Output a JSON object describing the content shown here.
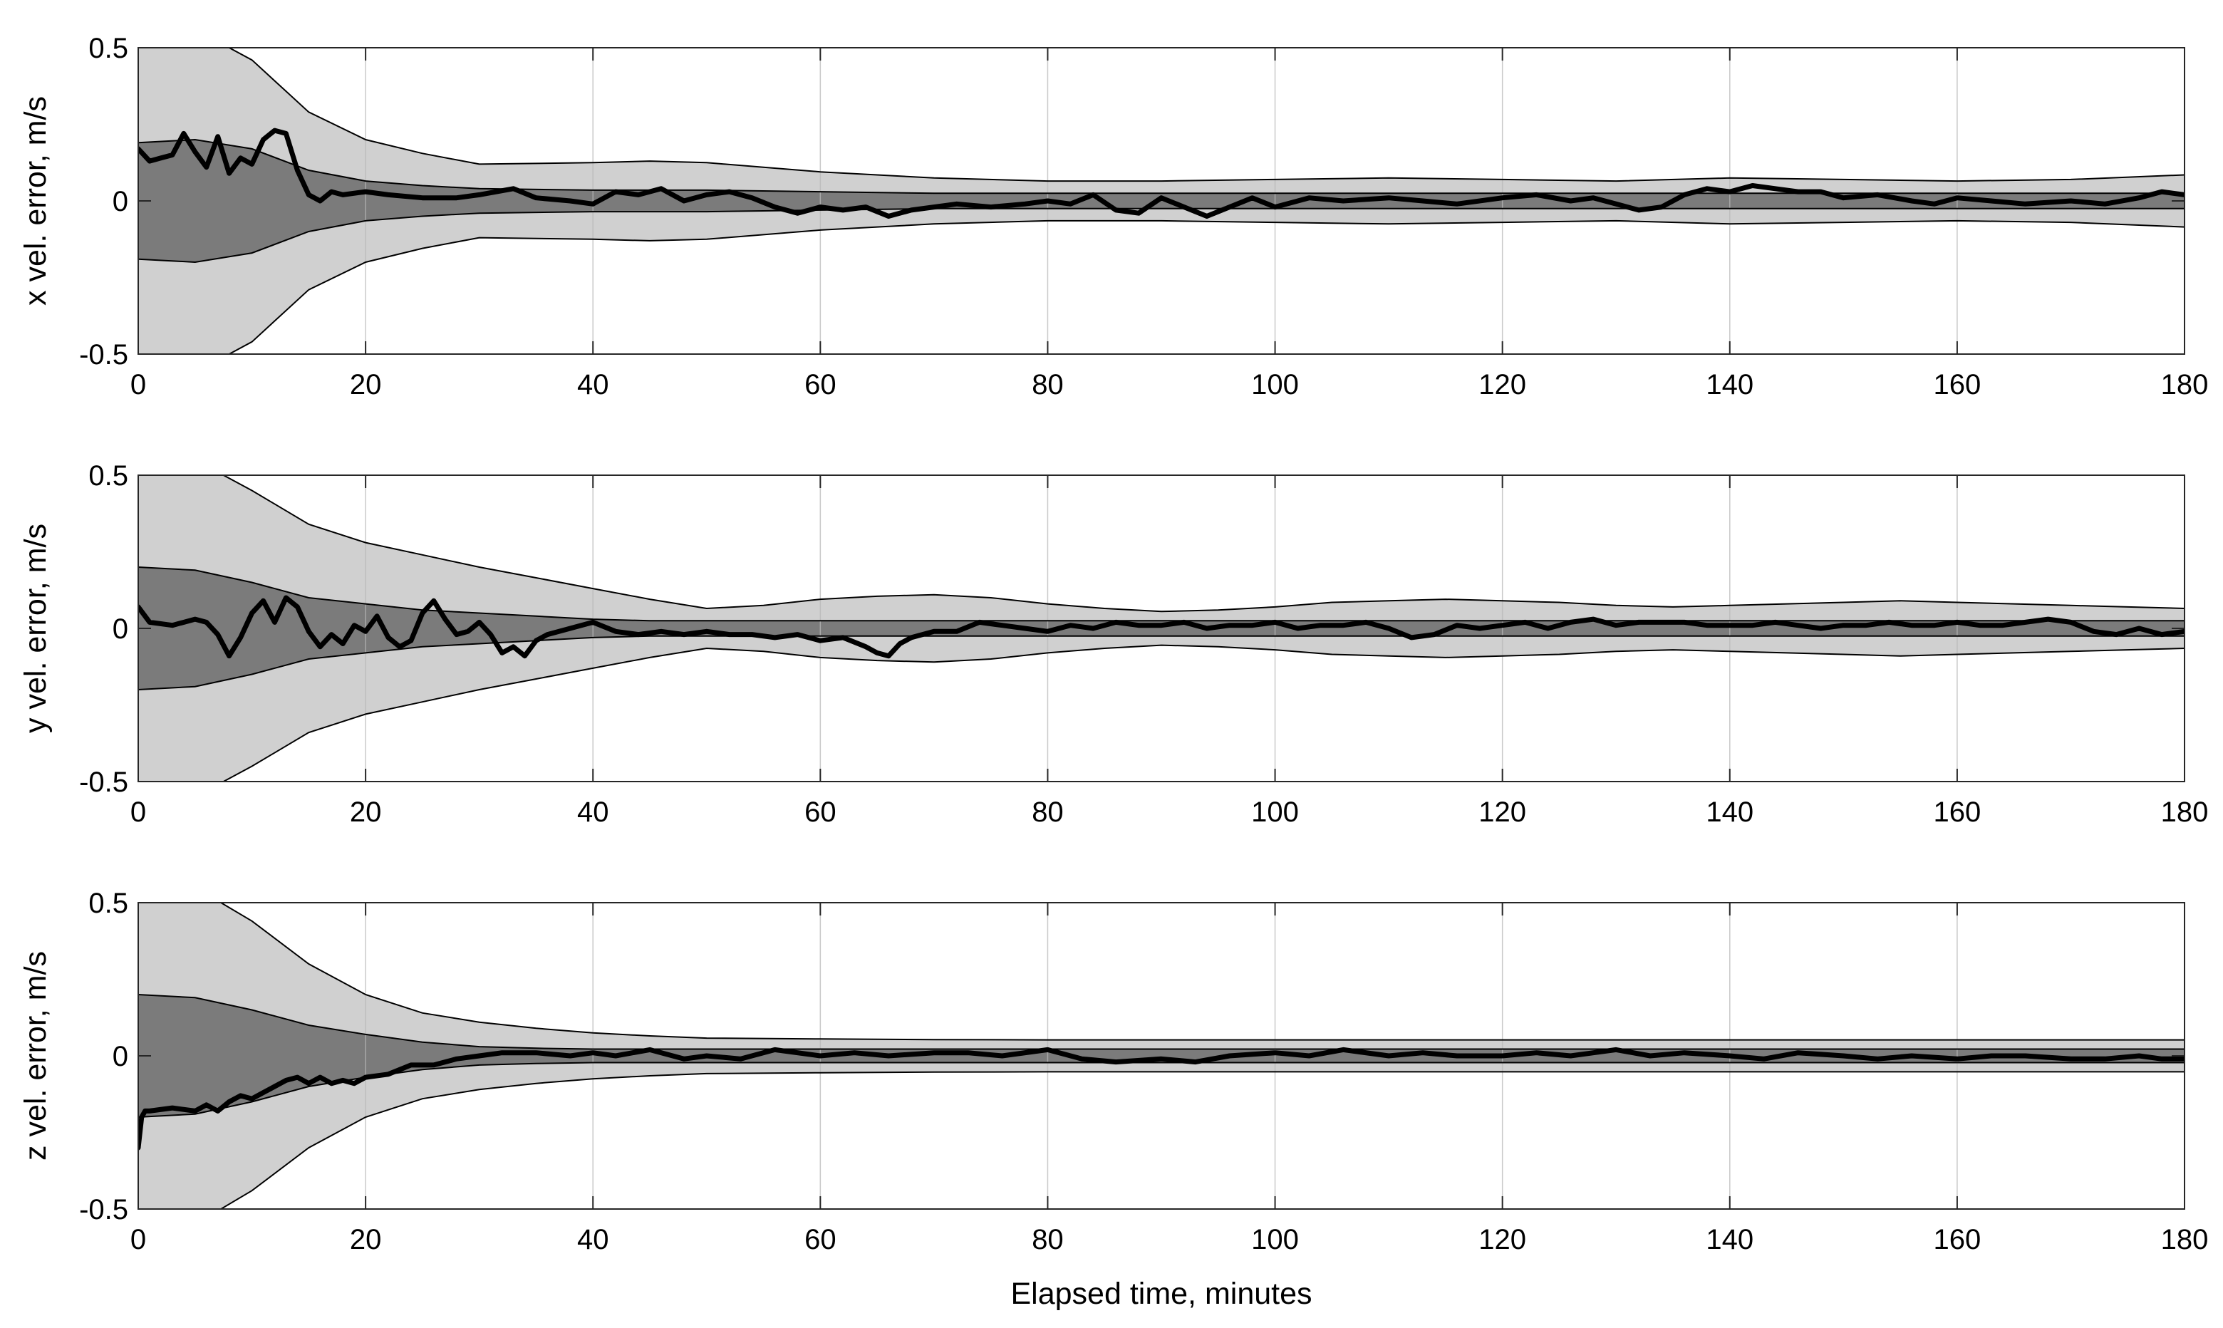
{
  "figure": {
    "xlabel": "Elapsed time, minutes"
  },
  "chart_data": [
    {
      "type": "area",
      "ylabel": "x vel. error, m/s",
      "xlim": [
        0,
        180
      ],
      "ylim": [
        -0.5,
        0.5
      ],
      "xticks": [
        "0",
        "20",
        "40",
        "60",
        "80",
        "100",
        "120",
        "140",
        "160",
        "180"
      ],
      "yticks": [
        "-0.5",
        "0",
        "0.5"
      ],
      "grid": "vertical",
      "band_colors": {
        "outer": "#d0d0d0",
        "inner": "#7b7b7b",
        "line": "#000000"
      },
      "bands": {
        "t": [
          0,
          5,
          10,
          15,
          20,
          25,
          30,
          40,
          45,
          50,
          60,
          70,
          80,
          90,
          100,
          110,
          120,
          130,
          140,
          150,
          160,
          170,
          180
        ],
        "outer": [
          0.62,
          0.56,
          0.46,
          0.29,
          0.2,
          0.155,
          0.12,
          0.125,
          0.13,
          0.125,
          0.095,
          0.075,
          0.065,
          0.065,
          0.07,
          0.075,
          0.07,
          0.065,
          0.075,
          0.07,
          0.065,
          0.07,
          0.085
        ],
        "inner": [
          0.19,
          0.2,
          0.17,
          0.1,
          0.065,
          0.05,
          0.04,
          0.035,
          0.035,
          0.035,
          0.03,
          0.025,
          0.025,
          0.025,
          0.025,
          0.025,
          0.025,
          0.025,
          0.025,
          0.025,
          0.025,
          0.025,
          0.025
        ]
      },
      "series": [
        {
          "t": [
            0,
            1,
            2,
            3,
            4,
            5,
            6,
            7,
            8,
            9,
            10,
            11,
            12,
            13,
            14,
            15,
            16,
            17,
            18,
            20,
            22,
            25,
            28,
            30,
            33,
            35,
            38,
            40,
            42,
            44,
            46,
            48,
            50,
            52,
            54,
            56,
            58,
            60,
            62,
            64,
            66,
            68,
            70,
            72,
            75,
            78,
            80,
            82,
            84,
            86,
            88,
            90,
            92,
            94,
            96,
            98,
            100,
            103,
            106,
            110,
            113,
            116,
            120,
            123,
            126,
            128,
            130,
            132,
            134,
            136,
            138,
            140,
            142,
            144,
            146,
            148,
            150,
            153,
            156,
            158,
            160,
            163,
            166,
            170,
            173,
            176,
            178,
            180
          ],
          "y": [
            0.17,
            0.13,
            0.14,
            0.15,
            0.22,
            0.16,
            0.11,
            0.21,
            0.09,
            0.14,
            0.12,
            0.2,
            0.23,
            0.22,
            0.1,
            0.02,
            0.0,
            0.03,
            0.02,
            0.03,
            0.02,
            0.01,
            0.01,
            0.02,
            0.04,
            0.01,
            0.0,
            -0.01,
            0.03,
            0.02,
            0.04,
            0.0,
            0.02,
            0.03,
            0.01,
            -0.02,
            -0.04,
            -0.02,
            -0.03,
            -0.02,
            -0.05,
            -0.03,
            -0.02,
            -0.01,
            -0.02,
            -0.01,
            0.0,
            -0.01,
            0.02,
            -0.03,
            -0.04,
            0.01,
            -0.02,
            -0.05,
            -0.02,
            0.01,
            -0.02,
            0.01,
            0.0,
            0.01,
            0.0,
            -0.01,
            0.01,
            0.02,
            0.0,
            0.01,
            -0.01,
            -0.03,
            -0.02,
            0.02,
            0.04,
            0.03,
            0.05,
            0.04,
            0.03,
            0.03,
            0.01,
            0.02,
            0.0,
            -0.01,
            0.01,
            0.0,
            -0.01,
            0.0,
            -0.01,
            0.01,
            0.03,
            0.02
          ]
        }
      ]
    },
    {
      "type": "area",
      "ylabel": "y vel. error, m/s",
      "xlim": [
        0,
        180
      ],
      "ylim": [
        -0.5,
        0.5
      ],
      "xticks": [
        "0",
        "20",
        "40",
        "60",
        "80",
        "100",
        "120",
        "140",
        "160",
        "180"
      ],
      "yticks": [
        "-0.5",
        "0",
        "0.5"
      ],
      "grid": "vertical",
      "band_colors": {
        "outer": "#d0d0d0",
        "inner": "#7b7b7b",
        "line": "#000000"
      },
      "bands": {
        "t": [
          0,
          5,
          10,
          15,
          20,
          25,
          30,
          35,
          40,
          45,
          50,
          55,
          60,
          65,
          70,
          75,
          80,
          85,
          90,
          95,
          100,
          105,
          110,
          115,
          120,
          125,
          130,
          135,
          140,
          145,
          150,
          155,
          160,
          165,
          170,
          175,
          180
        ],
        "outer": [
          0.62,
          0.55,
          0.45,
          0.34,
          0.28,
          0.24,
          0.2,
          0.165,
          0.13,
          0.095,
          0.065,
          0.075,
          0.095,
          0.105,
          0.11,
          0.1,
          0.08,
          0.065,
          0.055,
          0.06,
          0.07,
          0.085,
          0.09,
          0.095,
          0.09,
          0.085,
          0.075,
          0.07,
          0.075,
          0.08,
          0.085,
          0.09,
          0.085,
          0.08,
          0.075,
          0.07,
          0.065
        ],
        "inner": [
          0.2,
          0.19,
          0.15,
          0.1,
          0.08,
          0.06,
          0.05,
          0.04,
          0.03,
          0.025,
          0.025,
          0.025,
          0.025,
          0.025,
          0.025,
          0.025,
          0.025,
          0.025,
          0.025,
          0.025,
          0.025,
          0.025,
          0.025,
          0.025,
          0.025,
          0.025,
          0.025,
          0.025,
          0.025,
          0.025,
          0.025,
          0.025,
          0.025,
          0.025,
          0.025,
          0.025,
          0.025
        ]
      },
      "series": [
        {
          "t": [
            0,
            1,
            3,
            5,
            6,
            7,
            8,
            9,
            10,
            11,
            12,
            13,
            14,
            15,
            16,
            17,
            18,
            19,
            20,
            21,
            22,
            23,
            24,
            25,
            26,
            27,
            28,
            29,
            30,
            31,
            32,
            33,
            34,
            35,
            36,
            38,
            40,
            42,
            44,
            46,
            48,
            50,
            52,
            54,
            56,
            58,
            60,
            62,
            64,
            65,
            66,
            67,
            68,
            70,
            72,
            74,
            76,
            78,
            80,
            82,
            84,
            86,
            88,
            90,
            92,
            94,
            96,
            98,
            100,
            102,
            104,
            106,
            108,
            110,
            112,
            114,
            116,
            118,
            120,
            122,
            124,
            126,
            128,
            130,
            132,
            134,
            136,
            138,
            140,
            142,
            144,
            146,
            148,
            150,
            152,
            154,
            156,
            158,
            160,
            162,
            164,
            166,
            168,
            170,
            172,
            174,
            176,
            178,
            180
          ],
          "y": [
            0.07,
            0.02,
            0.01,
            0.03,
            0.02,
            -0.02,
            -0.09,
            -0.03,
            0.05,
            0.09,
            0.02,
            0.1,
            0.07,
            -0.01,
            -0.06,
            -0.02,
            -0.05,
            0.01,
            -0.01,
            0.04,
            -0.03,
            -0.06,
            -0.04,
            0.05,
            0.09,
            0.03,
            -0.02,
            -0.01,
            0.02,
            -0.02,
            -0.08,
            -0.06,
            -0.09,
            -0.04,
            -0.02,
            0.0,
            0.02,
            -0.01,
            -0.02,
            -0.01,
            -0.02,
            -0.01,
            -0.02,
            -0.02,
            -0.03,
            -0.02,
            -0.04,
            -0.03,
            -0.06,
            -0.08,
            -0.09,
            -0.05,
            -0.03,
            -0.01,
            -0.01,
            0.02,
            0.01,
            0.0,
            -0.01,
            0.01,
            0.0,
            0.02,
            0.01,
            0.01,
            0.02,
            0.0,
            0.01,
            0.01,
            0.02,
            0.0,
            0.01,
            0.01,
            0.02,
            0.0,
            -0.03,
            -0.02,
            0.01,
            0.0,
            0.01,
            0.02,
            0.0,
            0.02,
            0.03,
            0.01,
            0.02,
            0.02,
            0.02,
            0.01,
            0.01,
            0.01,
            0.02,
            0.01,
            0.0,
            0.01,
            0.01,
            0.02,
            0.01,
            0.01,
            0.02,
            0.01,
            0.01,
            0.02,
            0.03,
            0.02,
            -0.01,
            -0.02,
            0.0,
            -0.02,
            -0.01
          ]
        }
      ]
    },
    {
      "type": "area",
      "ylabel": "z vel. error, m/s",
      "xlim": [
        0,
        180
      ],
      "ylim": [
        -0.5,
        0.5
      ],
      "xticks": [
        "0",
        "20",
        "40",
        "60",
        "80",
        "100",
        "120",
        "140",
        "160",
        "180"
      ],
      "yticks": [
        "-0.5",
        "0",
        "0.5"
      ],
      "grid": "vertical",
      "band_colors": {
        "outer": "#d0d0d0",
        "inner": "#7b7b7b",
        "line": "#000000"
      },
      "bands": {
        "t": [
          0,
          5,
          10,
          15,
          20,
          25,
          30,
          35,
          40,
          45,
          50,
          60,
          70,
          80,
          90,
          100,
          110,
          120,
          130,
          140,
          150,
          160,
          170,
          180
        ],
        "outer": [
          0.62,
          0.55,
          0.44,
          0.3,
          0.2,
          0.14,
          0.11,
          0.09,
          0.075,
          0.065,
          0.058,
          0.055,
          0.053,
          0.052,
          0.052,
          0.052,
          0.052,
          0.052,
          0.052,
          0.052,
          0.052,
          0.052,
          0.052,
          0.052
        ],
        "inner": [
          0.2,
          0.19,
          0.15,
          0.1,
          0.07,
          0.045,
          0.03,
          0.025,
          0.022,
          0.022,
          0.022,
          0.022,
          0.022,
          0.022,
          0.022,
          0.022,
          0.022,
          0.022,
          0.022,
          0.022,
          0.022,
          0.022,
          0.022,
          0.022
        ]
      },
      "series": [
        {
          "t": [
            0,
            0.3,
            0.6,
            1,
            3,
            5,
            6,
            7,
            8,
            9,
            10,
            11,
            12,
            13,
            14,
            15,
            16,
            17,
            18,
            19,
            20,
            22,
            24,
            26,
            28,
            30,
            32,
            35,
            38,
            40,
            42,
            45,
            48,
            50,
            53,
            56,
            60,
            63,
            66,
            70,
            73,
            76,
            80,
            83,
            86,
            90,
            93,
            96,
            100,
            103,
            106,
            110,
            113,
            116,
            120,
            123,
            126,
            128,
            130,
            133,
            136,
            140,
            143,
            146,
            150,
            153,
            156,
            160,
            163,
            166,
            170,
            173,
            176,
            178,
            180
          ],
          "y": [
            -0.3,
            -0.2,
            -0.18,
            -0.18,
            -0.17,
            -0.18,
            -0.16,
            -0.18,
            -0.15,
            -0.13,
            -0.14,
            -0.12,
            -0.1,
            -0.08,
            -0.07,
            -0.09,
            -0.07,
            -0.09,
            -0.08,
            -0.09,
            -0.07,
            -0.06,
            -0.03,
            -0.03,
            -0.01,
            0.0,
            0.01,
            0.01,
            0.0,
            0.01,
            0.0,
            0.02,
            -0.01,
            0.0,
            -0.01,
            0.02,
            0.0,
            0.01,
            0.0,
            0.01,
            0.01,
            0.0,
            0.02,
            -0.01,
            -0.02,
            -0.01,
            -0.02,
            0.0,
            0.01,
            0.0,
            0.02,
            0.0,
            0.01,
            0.0,
            0.0,
            0.01,
            0.0,
            0.01,
            0.02,
            0.0,
            0.01,
            0.0,
            -0.01,
            0.01,
            0.0,
            -0.01,
            0.0,
            -0.01,
            0.0,
            0.0,
            -0.01,
            -0.01,
            0.0,
            -0.01,
            -0.01
          ]
        }
      ]
    }
  ]
}
